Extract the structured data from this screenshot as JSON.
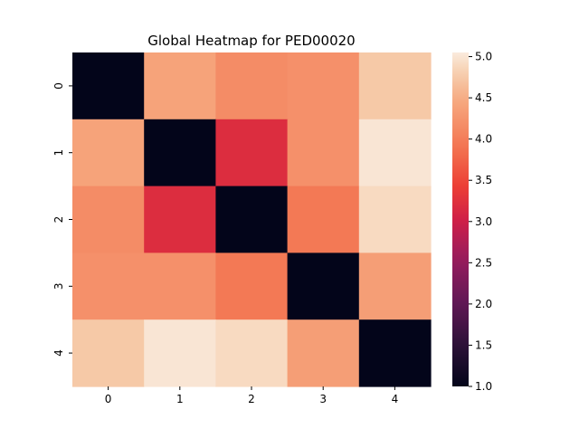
{
  "chart_data": {
    "type": "heatmap",
    "title": "Global Heatmap for PED00020",
    "xlabel": "",
    "ylabel": "",
    "x_categories": [
      "0",
      "1",
      "2",
      "3",
      "4"
    ],
    "y_categories": [
      "0",
      "1",
      "2",
      "3",
      "4"
    ],
    "values": [
      [
        1.0,
        4.4,
        4.15,
        4.2,
        4.75
      ],
      [
        4.4,
        1.0,
        3.2,
        4.2,
        5.0
      ],
      [
        4.15,
        3.2,
        1.0,
        3.95,
        4.9
      ],
      [
        4.2,
        4.2,
        3.95,
        1.0,
        4.35
      ],
      [
        4.75,
        5.0,
        4.9,
        4.35,
        1.0
      ]
    ],
    "colorbar": {
      "vmin": 1.0,
      "vmax": 5.05,
      "ticks": [
        "1.0",
        "1.5",
        "2.0",
        "2.5",
        "3.0",
        "3.5",
        "4.0",
        "4.5",
        "5.0"
      ],
      "colormap": "rocket"
    },
    "grid": false
  }
}
